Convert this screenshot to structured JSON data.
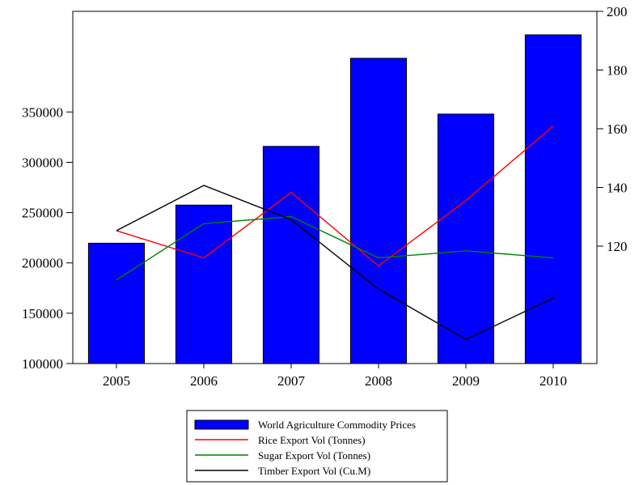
{
  "chart_data": {
    "type": "bar",
    "categories": [
      "2005",
      "2006",
      "2007",
      "2008",
      "2009",
      "2010"
    ],
    "bar_series": {
      "name": "World Agriculture Commodity Prices",
      "axis": "right",
      "color": "#0000FF",
      "values": [
        121,
        134,
        154,
        184,
        165,
        192
      ]
    },
    "line_series": [
      {
        "name": "Rice Export Vol (Tonnes)",
        "axis": "left",
        "color": "#FF0000",
        "values": [
          232000,
          205000,
          270000,
          197000,
          262000,
          336000
        ]
      },
      {
        "name": "Sugar Export Vol (Tonnes)",
        "axis": "left",
        "color": "#008000",
        "values": [
          183000,
          239000,
          246000,
          205000,
          212000,
          205000
        ]
      },
      {
        "name": "Timber Export Vol (Cu.M)",
        "axis": "left",
        "color": "#000000",
        "values": [
          232000,
          277000,
          243000,
          174000,
          124000,
          165000
        ]
      }
    ],
    "left_axis": {
      "min": 100000,
      "max": 450000,
      "ticks": [
        "100000",
        "150000",
        "200000",
        "250000",
        "300000",
        "350000"
      ]
    },
    "right_axis": {
      "min": 80,
      "max": 200,
      "ticks": [
        "120",
        "140",
        "160",
        "180",
        "200"
      ]
    },
    "title": "",
    "xlabel": "",
    "ylabel": "",
    "legend_position": "bottom-center",
    "grid": false
  }
}
